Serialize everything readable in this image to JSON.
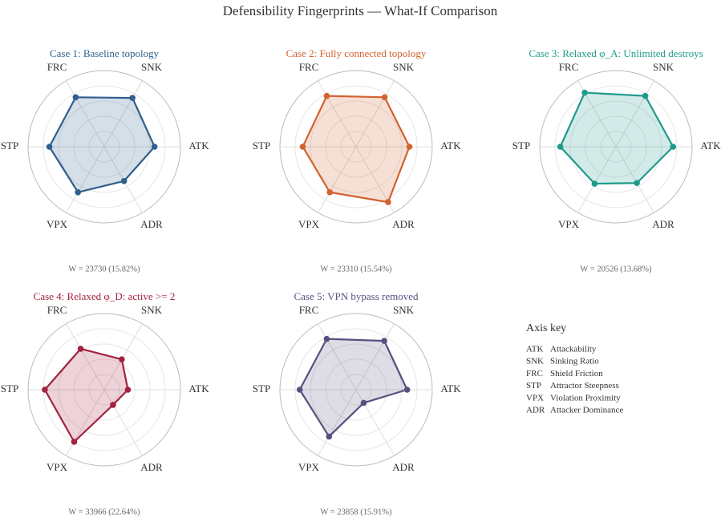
{
  "title": "Defensibility Fingerprints — What-If Comparison",
  "chart_data": [
    {
      "type": "radar",
      "title": "Case 1: Baseline topology",
      "categories": [
        "ATK",
        "SNK",
        "FRC",
        "STP",
        "VPX",
        "ADR"
      ],
      "values": [
        0.66,
        0.74,
        0.75,
        0.72,
        0.69,
        0.52
      ],
      "color": "#2f5f8c",
      "ylim": [
        0,
        1
      ],
      "yticks": [
        0.2,
        0.4,
        0.6,
        0.8,
        1.0
      ],
      "annotation": "W = 23730 (15.82%)"
    },
    {
      "type": "radar",
      "title": "Case 2: Fully connected topology",
      "categories": [
        "ATK",
        "SNK",
        "FRC",
        "STP",
        "VPX",
        "ADR"
      ],
      "values": [
        0.7,
        0.75,
        0.77,
        0.7,
        0.69,
        0.84
      ],
      "color": "#d2622f",
      "ylim": [
        0,
        1
      ],
      "yticks": [
        0.2,
        0.4,
        0.6,
        0.8,
        1.0
      ],
      "annotation": "W = 23310 (15.54%)"
    },
    {
      "type": "radar",
      "title": "Case 3: Relaxed φ_A: Unlimited destroys",
      "categories": [
        "ATK",
        "SNK",
        "FRC",
        "STP",
        "VPX",
        "ADR"
      ],
      "values": [
        0.75,
        0.77,
        0.82,
        0.73,
        0.56,
        0.55
      ],
      "color": "#1f9a8a",
      "ylim": [
        0,
        1
      ],
      "yticks": [
        0.2,
        0.4,
        0.6,
        0.8,
        1.0
      ],
      "annotation": "W = 20526 (13.68%)"
    },
    {
      "type": "radar",
      "title": "Case 4: Relaxed φ_D: active >= 2",
      "categories": [
        "ATK",
        "SNK",
        "FRC",
        "STP",
        "VPX",
        "ADR"
      ],
      "values": [
        0.31,
        0.46,
        0.62,
        0.78,
        0.79,
        0.23
      ],
      "color": "#a3223f",
      "ylim": [
        0,
        1
      ],
      "yticks": [
        0.2,
        0.4,
        0.6,
        0.8,
        1.0
      ],
      "annotation": "W = 33966 (22.64%)"
    },
    {
      "type": "radar",
      "title": "Case 5: VPN bypass removed",
      "categories": [
        "ATK",
        "SNK",
        "FRC",
        "STP",
        "VPX",
        "ADR"
      ],
      "values": [
        0.67,
        0.74,
        0.77,
        0.74,
        0.71,
        0.2
      ],
      "color": "#5a4f7f",
      "ylim": [
        0,
        1
      ],
      "yticks": [
        0.2,
        0.4,
        0.6,
        0.8,
        1.0
      ],
      "annotation": "W = 23858 (15.91%)"
    }
  ],
  "axis_key": {
    "title": "Axis key",
    "items": [
      {
        "code": "ATK",
        "name": "Attackability"
      },
      {
        "code": "SNK",
        "name": "Sinking Ratio"
      },
      {
        "code": "FRC",
        "name": "Shield Friction"
      },
      {
        "code": "STP",
        "name": "Attractor Steepness"
      },
      {
        "code": "VPX",
        "name": "Violation Proximity"
      },
      {
        "code": "ADR",
        "name": "Attacker Dominance"
      }
    ]
  }
}
